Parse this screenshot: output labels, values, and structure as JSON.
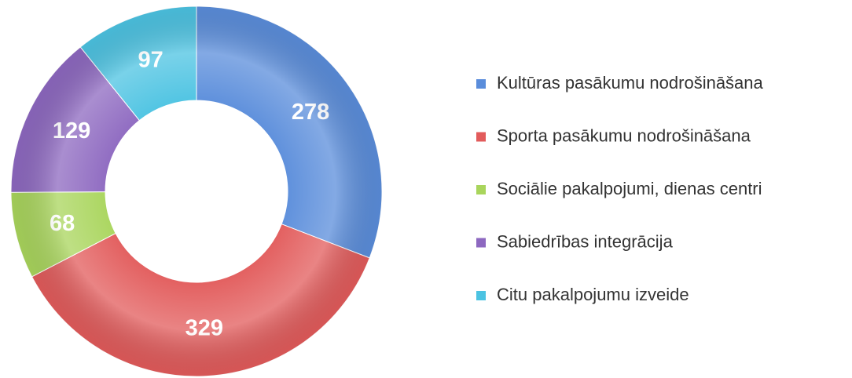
{
  "chart_data": {
    "type": "donut",
    "categories": [
      "Kultūras pasākumu nodrošināšana",
      "Sporta pasākumu nodrošināšana",
      "Sociālie pakalpojumi, dienas centri",
      "Sabiedrības integrācija",
      "Citu pakalpojumu izveide"
    ],
    "values": [
      278,
      329,
      68,
      129,
      97
    ],
    "colors": [
      "#5a8ddb",
      "#e25b5b",
      "#a9d55c",
      "#8d68c0",
      "#4cc3e2"
    ],
    "legend": "right"
  }
}
